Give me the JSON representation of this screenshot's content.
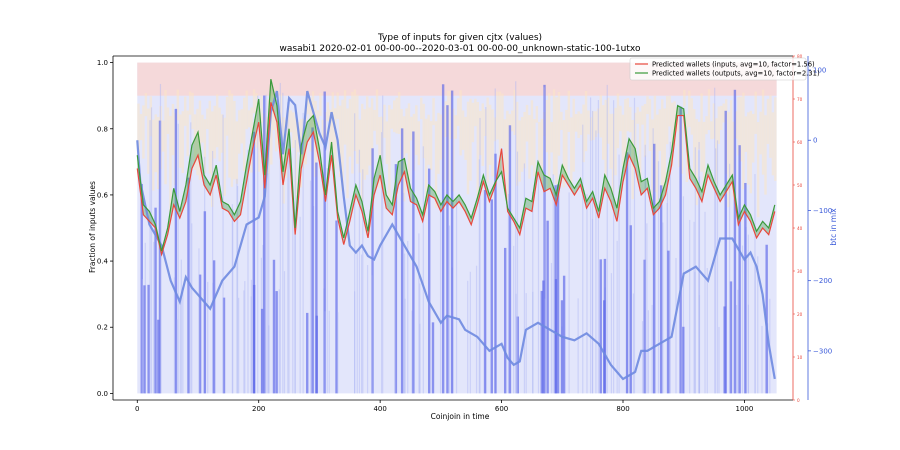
{
  "chart_data": {
    "type": "line",
    "title": "Type of inputs for given cjtx (values)",
    "subtitle": "wasabi1 2020-02-01 00-00-00--2020-03-01 00-00-00_unknown-static-100-1utxo",
    "xlabel": "Coinjoin in time",
    "ylabel": "Fraction of inputs values",
    "right_ylabel": "btc in mix",
    "xlim": [
      -40,
      1080
    ],
    "ylim": [
      -0.02,
      1.02
    ],
    "right_ylim": [
      -370,
      120
    ],
    "red_axis_lim": [
      0,
      80
    ],
    "x_ticks": [
      "0",
      "200",
      "400",
      "600",
      "800",
      "1000"
    ],
    "y_ticks": [
      "0.0",
      "0.2",
      "0.4",
      "0.6",
      "0.8",
      "1.0"
    ],
    "right_ticks": [
      "100",
      "0",
      "−100",
      "−200",
      "−300"
    ],
    "red_ticks": [
      "0",
      "10",
      "20",
      "30",
      "40",
      "50",
      "60",
      "70",
      "80"
    ],
    "legend_position": "top-right",
    "grid": false,
    "series": [
      {
        "name": "Predicted wallets (inputs, avg=10, factor=1.56)",
        "color": "#e8473c",
        "axis": "left",
        "x": [
          0,
          10,
          20,
          30,
          40,
          50,
          60,
          70,
          80,
          90,
          100,
          110,
          120,
          130,
          140,
          150,
          160,
          170,
          180,
          190,
          200,
          210,
          220,
          230,
          240,
          250,
          260,
          270,
          280,
          290,
          300,
          310,
          320,
          330,
          340,
          350,
          360,
          370,
          380,
          390,
          400,
          410,
          420,
          430,
          440,
          450,
          460,
          470,
          480,
          490,
          500,
          510,
          520,
          530,
          540,
          550,
          560,
          570,
          580,
          590,
          600,
          610,
          620,
          630,
          640,
          650,
          660,
          670,
          680,
          690,
          700,
          710,
          720,
          730,
          740,
          750,
          760,
          770,
          780,
          790,
          800,
          810,
          820,
          830,
          840,
          850,
          860,
          870,
          880,
          890,
          900,
          910,
          920,
          930,
          940,
          950,
          960,
          970,
          980,
          990,
          1000,
          1010,
          1020,
          1030,
          1040,
          1050
        ],
        "values": [
          0.68,
          0.54,
          0.52,
          0.5,
          0.42,
          0.48,
          0.57,
          0.53,
          0.58,
          0.68,
          0.72,
          0.63,
          0.6,
          0.66,
          0.56,
          0.55,
          0.52,
          0.54,
          0.64,
          0.74,
          0.82,
          0.62,
          0.88,
          0.82,
          0.63,
          0.74,
          0.48,
          0.68,
          0.76,
          0.79,
          0.7,
          0.58,
          0.72,
          0.53,
          0.45,
          0.52,
          0.6,
          0.55,
          0.47,
          0.6,
          0.66,
          0.56,
          0.54,
          0.63,
          0.67,
          0.58,
          0.57,
          0.52,
          0.6,
          0.59,
          0.55,
          0.58,
          0.56,
          0.58,
          0.55,
          0.51,
          0.57,
          0.64,
          0.58,
          0.63,
          0.74,
          0.55,
          0.52,
          0.48,
          0.56,
          0.55,
          0.67,
          0.61,
          0.62,
          0.57,
          0.66,
          0.63,
          0.6,
          0.63,
          0.56,
          0.59,
          0.53,
          0.62,
          0.58,
          0.52,
          0.64,
          0.72,
          0.68,
          0.6,
          0.62,
          0.54,
          0.56,
          0.6,
          0.69,
          0.84,
          0.84,
          0.65,
          0.62,
          0.58,
          0.66,
          0.62,
          0.58,
          0.61,
          0.64,
          0.51,
          0.55,
          0.52,
          0.47,
          0.5,
          0.48,
          0.55
        ]
      },
      {
        "name": "Predicted wallets (outputs, avg=10, factor=2.31)",
        "color": "#3a9a3a",
        "axis": "left",
        "x": [
          0,
          10,
          20,
          30,
          40,
          50,
          60,
          70,
          80,
          90,
          100,
          110,
          120,
          130,
          140,
          150,
          160,
          170,
          180,
          190,
          200,
          210,
          220,
          230,
          240,
          250,
          260,
          270,
          280,
          290,
          300,
          310,
          320,
          330,
          340,
          350,
          360,
          370,
          380,
          390,
          400,
          410,
          420,
          430,
          440,
          450,
          460,
          470,
          480,
          490,
          500,
          510,
          520,
          530,
          540,
          550,
          560,
          570,
          580,
          590,
          600,
          610,
          620,
          630,
          640,
          650,
          660,
          670,
          680,
          690,
          700,
          710,
          720,
          730,
          740,
          750,
          760,
          770,
          780,
          790,
          800,
          810,
          820,
          830,
          840,
          850,
          860,
          870,
          880,
          890,
          900,
          910,
          920,
          930,
          940,
          950,
          960,
          970,
          980,
          990,
          1000,
          1010,
          1020,
          1030,
          1040,
          1050
        ],
        "values": [
          0.72,
          0.57,
          0.55,
          0.51,
          0.43,
          0.5,
          0.62,
          0.55,
          0.63,
          0.75,
          0.79,
          0.66,
          0.63,
          0.69,
          0.58,
          0.57,
          0.54,
          0.58,
          0.69,
          0.79,
          0.89,
          0.66,
          0.95,
          0.87,
          0.67,
          0.8,
          0.5,
          0.75,
          0.82,
          0.84,
          0.74,
          0.6,
          0.76,
          0.55,
          0.47,
          0.55,
          0.63,
          0.58,
          0.49,
          0.65,
          0.72,
          0.6,
          0.57,
          0.7,
          0.71,
          0.62,
          0.59,
          0.54,
          0.63,
          0.61,
          0.57,
          0.6,
          0.58,
          0.6,
          0.57,
          0.53,
          0.59,
          0.66,
          0.6,
          0.64,
          0.67,
          0.56,
          0.53,
          0.5,
          0.59,
          0.58,
          0.7,
          0.66,
          0.65,
          0.6,
          0.69,
          0.65,
          0.62,
          0.65,
          0.58,
          0.61,
          0.55,
          0.66,
          0.62,
          0.56,
          0.68,
          0.77,
          0.74,
          0.64,
          0.65,
          0.56,
          0.58,
          0.64,
          0.73,
          0.87,
          0.86,
          0.68,
          0.65,
          0.61,
          0.69,
          0.64,
          0.6,
          0.63,
          0.66,
          0.53,
          0.57,
          0.54,
          0.49,
          0.52,
          0.5,
          0.57
        ]
      },
      {
        "color": "#6e8ae0",
        "axis": "right",
        "x": [
          0,
          5,
          20,
          40,
          55,
          70,
          80,
          90,
          100,
          120,
          140,
          160,
          170,
          180,
          200,
          210,
          220,
          230,
          240,
          250,
          260,
          270,
          275,
          280,
          290,
          300,
          310,
          320,
          330,
          340,
          350,
          360,
          370,
          380,
          390,
          400,
          420,
          440,
          460,
          480,
          500,
          510,
          530,
          540,
          560,
          580,
          600,
          610,
          620,
          630,
          640,
          660,
          680,
          700,
          720,
          740,
          760,
          780,
          800,
          820,
          830,
          840,
          860,
          880,
          900,
          920,
          940,
          960,
          980,
          1000,
          1010,
          1020,
          1030,
          1040,
          1050
        ],
        "values": [
          0,
          -60,
          -120,
          -150,
          -200,
          -230,
          -195,
          -210,
          -220,
          -240,
          -200,
          -180,
          -150,
          -120,
          -110,
          -80,
          40,
          70,
          -20,
          60,
          50,
          -20,
          20,
          70,
          40,
          10,
          -10,
          40,
          0,
          -80,
          -150,
          -160,
          -150,
          -165,
          -170,
          -150,
          -120,
          -150,
          -180,
          -230,
          -260,
          -250,
          -255,
          -270,
          -280,
          -300,
          -290,
          -310,
          -320,
          -315,
          -270,
          -260,
          -270,
          -280,
          -285,
          -275,
          -290,
          -320,
          -340,
          -330,
          -300,
          -300,
          -290,
          -280,
          -190,
          -180,
          -200,
          -140,
          -140,
          -170,
          -160,
          -180,
          -220,
          -290,
          -340
        ]
      }
    ]
  }
}
